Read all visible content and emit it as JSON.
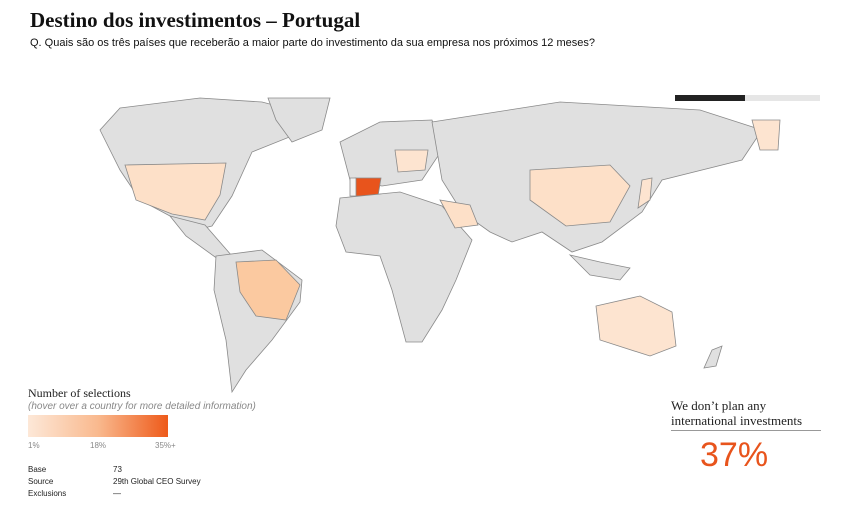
{
  "header": {
    "title": "Destino dos investimentos – Portugal",
    "question": "Q. Quais são os três países que receberão a maior parte do investimento da sua empresa nos próximos 12 meses?"
  },
  "legend": {
    "title": "Number of selections",
    "hint": "(hover over a country for more detailed information)",
    "labels": [
      "1%",
      "18%",
      "35%+"
    ]
  },
  "footer": {
    "rows": [
      [
        "Base",
        "73"
      ],
      [
        "Source",
        "29th Global CEO Survey"
      ],
      [
        "Exclusions",
        "—"
      ]
    ]
  },
  "no_plan": {
    "text": "We don’t plan any international investments",
    "value": "37%"
  }
}
